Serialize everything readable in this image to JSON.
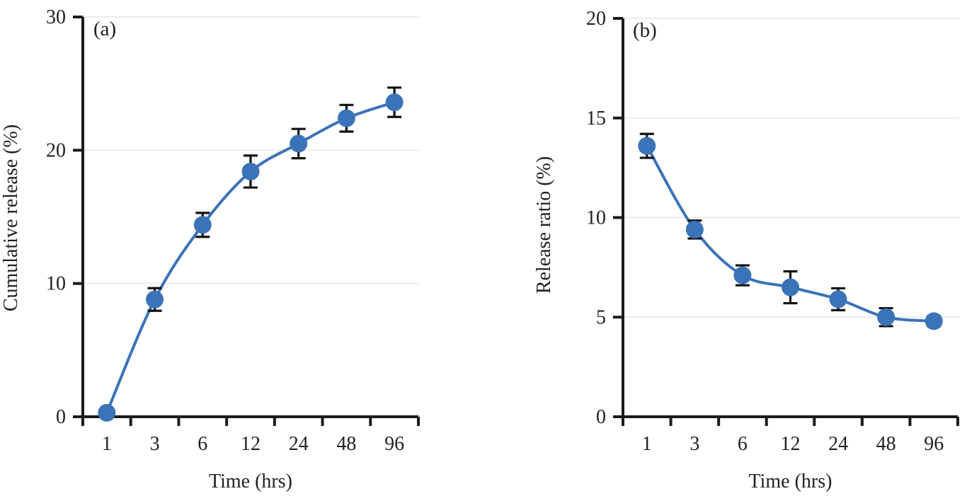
{
  "figure": {
    "background": "#FFFFFF",
    "description": "Two-panel drug release line charts with error bars"
  },
  "palette": {
    "series_blue": "#3B73B8",
    "axis": "#1A1A1A",
    "text": "#231F20",
    "gridline": "#ECECEC",
    "error_bar": "#121212"
  },
  "chart_data": [
    {
      "type": "line",
      "panel_label": "(a)",
      "title": "",
      "xlabel": "Time (hrs)",
      "ylabel": "Cumulative release (%)",
      "x_scale": "category",
      "categories": [
        "1",
        "3",
        "6",
        "12",
        "24",
        "48",
        "96"
      ],
      "series": [
        {
          "name": "Cumulative release",
          "marker": "circle",
          "values": [
            0.3,
            8.8,
            14.4,
            18.4,
            20.5,
            22.4,
            23.6
          ],
          "errors": [
            0,
            0.85,
            0.9,
            1.2,
            1.1,
            1.0,
            1.1
          ]
        }
      ],
      "ylim": [
        0,
        30
      ],
      "yticks": [
        0,
        10,
        20,
        30
      ],
      "grid": true,
      "legend_position": "none"
    },
    {
      "type": "line",
      "panel_label": "(b)",
      "title": "",
      "xlabel": "Time (hrs)",
      "ylabel": "Release ratio (%)",
      "x_scale": "category",
      "categories": [
        "1",
        "3",
        "6",
        "12",
        "24",
        "48",
        "96"
      ],
      "series": [
        {
          "name": "Release ratio",
          "marker": "circle",
          "values": [
            13.6,
            9.4,
            7.1,
            6.5,
            5.9,
            5.0,
            4.8
          ],
          "errors": [
            0.6,
            0.45,
            0.5,
            0.8,
            0.55,
            0.45,
            0.25
          ]
        }
      ],
      "ylim": [
        0,
        20
      ],
      "yticks": [
        0,
        5,
        10,
        15,
        20
      ],
      "grid": true,
      "legend_position": "none"
    }
  ]
}
